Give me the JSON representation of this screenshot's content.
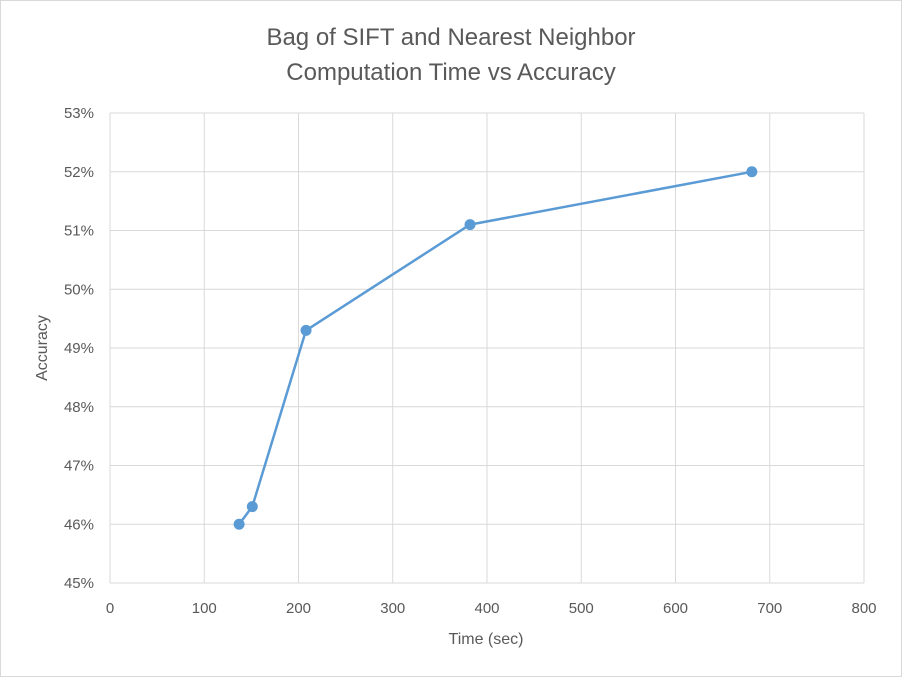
{
  "chart_data": {
    "type": "scatter",
    "title": [
      "Bag of SIFT and Nearest Neighbor",
      "Computation Time vs Accuracy"
    ],
    "xlabel": "Time (sec)",
    "ylabel": "Accuracy",
    "xlim": [
      0,
      800
    ],
    "ylim": [
      0.45,
      0.53
    ],
    "x_ticks": [
      0,
      100,
      200,
      300,
      400,
      500,
      600,
      700,
      800
    ],
    "x_tick_labels": [
      "0",
      "100",
      "200",
      "300",
      "400",
      "500",
      "600",
      "700",
      "800"
    ],
    "y_ticks": [
      0.45,
      0.46,
      0.47,
      0.48,
      0.49,
      0.5,
      0.51,
      0.52,
      0.53
    ],
    "y_tick_labels": [
      "45%",
      "46%",
      "47%",
      "48%",
      "49%",
      "50%",
      "51%",
      "52%",
      "53%"
    ],
    "grid": true,
    "legend": "none",
    "series": [
      {
        "color": "#5b9bd5",
        "marker": "circle",
        "line": "straight",
        "points": [
          {
            "x": 137,
            "y": 0.46
          },
          {
            "x": 151,
            "y": 0.463
          },
          {
            "x": 208,
            "y": 0.493
          },
          {
            "x": 382,
            "y": 0.511
          },
          {
            "x": 681,
            "y": 0.52
          }
        ]
      }
    ],
    "colors": {
      "grid": "#d9d9d9",
      "text": "#595959",
      "series": "#5b9bd5"
    }
  }
}
